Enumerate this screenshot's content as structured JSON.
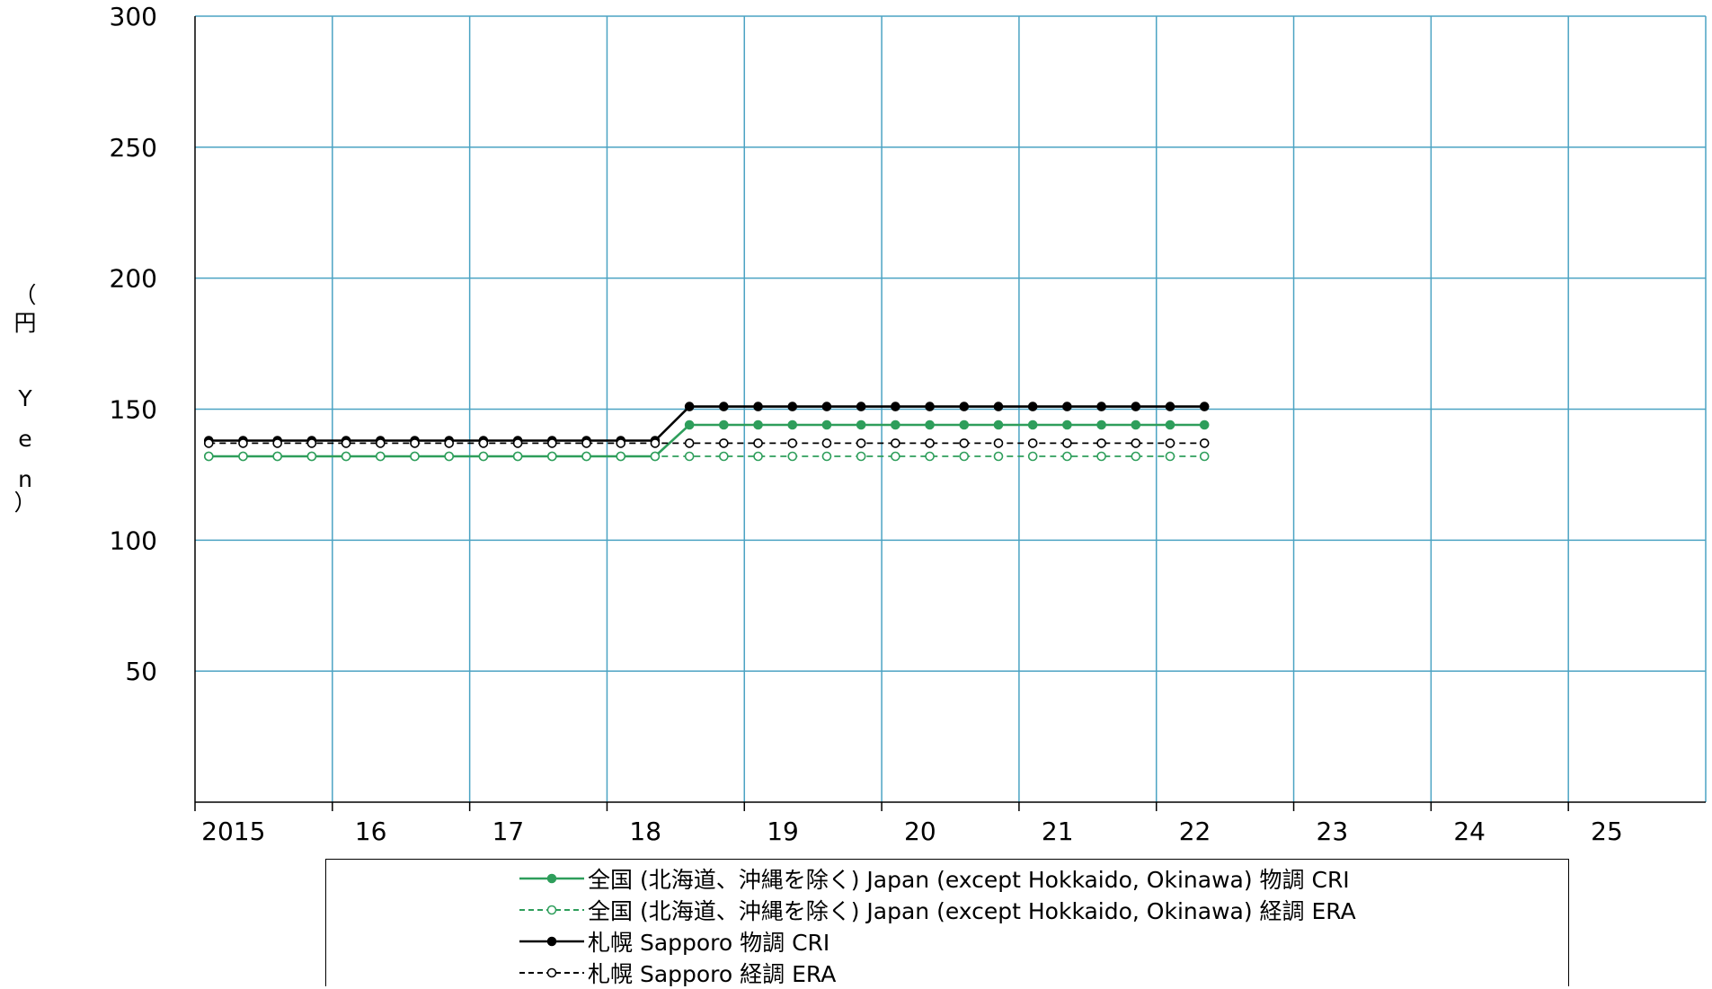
{
  "chart_data": {
    "type": "line",
    "ylabel_chars": [
      "（",
      "円",
      "Y",
      "e",
      "n",
      "）"
    ],
    "yticks": [
      50,
      100,
      150,
      200,
      250,
      300
    ],
    "ylim": [
      0,
      300
    ],
    "xticks": [
      "2015",
      "16",
      "17",
      "18",
      "19",
      "20",
      "21",
      "22",
      "23",
      "24",
      "25"
    ],
    "xlim": [
      2015,
      2026
    ],
    "grid": true,
    "colors": {
      "grid": "#4BA3C3",
      "japan": "#2E9E5B",
      "sapporo": "#000000"
    },
    "x": [
      2015.1,
      2015.35,
      2015.6,
      2015.85,
      2016.1,
      2016.35,
      2016.6,
      2016.85,
      2017.1,
      2017.35,
      2017.6,
      2017.85,
      2018.1,
      2018.35,
      2018.6,
      2018.85,
      2019.1,
      2019.35,
      2019.6,
      2019.85,
      2020.1,
      2020.35,
      2020.6,
      2020.85,
      2021.1,
      2021.35,
      2021.6,
      2021.85,
      2022.1,
      2022.35
    ],
    "series": [
      {
        "name": "全国 (北海道、沖縄を除く) Japan (except Hokkaido, Okinawa)  物調 CRI",
        "color_key": "japan",
        "dashed": false,
        "filled": true,
        "values": [
          132,
          132,
          132,
          132,
          132,
          132,
          132,
          132,
          132,
          132,
          132,
          132,
          132,
          132,
          144,
          144,
          144,
          144,
          144,
          144,
          144,
          144,
          144,
          144,
          144,
          144,
          144,
          144,
          144,
          144
        ]
      },
      {
        "name": "全国 (北海道、沖縄を除く) Japan (except Hokkaido, Okinawa)  経調 ERA",
        "color_key": "japan",
        "dashed": true,
        "filled": false,
        "values": [
          132,
          132,
          132,
          132,
          132,
          132,
          132,
          132,
          132,
          132,
          132,
          132,
          132,
          132,
          132,
          132,
          132,
          132,
          132,
          132,
          132,
          132,
          132,
          132,
          132,
          132,
          132,
          132,
          132,
          132
        ]
      },
      {
        "name": "札幌 Sapporo 物調 CRI",
        "color_key": "sapporo",
        "dashed": false,
        "filled": true,
        "values": [
          138,
          138,
          138,
          138,
          138,
          138,
          138,
          138,
          138,
          138,
          138,
          138,
          138,
          138,
          151,
          151,
          151,
          151,
          151,
          151,
          151,
          151,
          151,
          151,
          151,
          151,
          151,
          151,
          151,
          151
        ]
      },
      {
        "name": "札幌 Sapporo 経調 ERA",
        "color_key": "sapporo",
        "dashed": true,
        "filled": false,
        "values": [
          137,
          137,
          137,
          137,
          137,
          137,
          137,
          137,
          137,
          137,
          137,
          137,
          137,
          137,
          137,
          137,
          137,
          137,
          137,
          137,
          137,
          137,
          137,
          137,
          137,
          137,
          137,
          137,
          137,
          137
        ]
      }
    ]
  }
}
